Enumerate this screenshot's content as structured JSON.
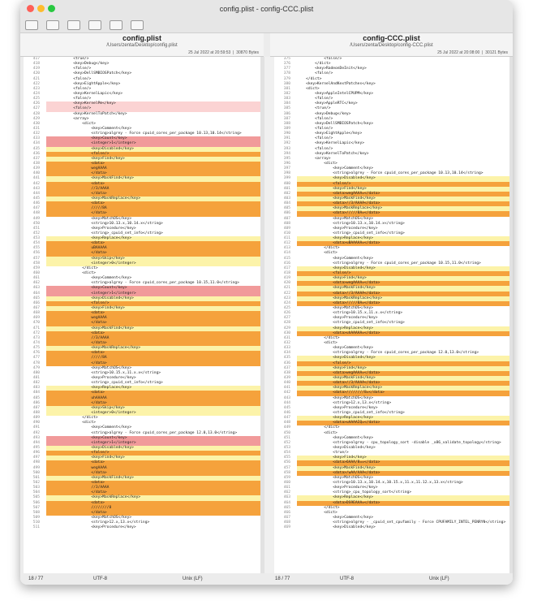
{
  "window": {
    "title": "config.plist - config-CCC.plist"
  },
  "left": {
    "file": "config.plist",
    "path": "/Users/zenta/Desktop/config.plist",
    "date": "25 Jul 2022 at 20:59:53",
    "size": "30870 Bytes",
    "lines": [
      [
        417,
        "            <true/>"
      ],
      [
        418,
        "            <key>Debug</key>"
      ],
      [
        419,
        "            <false/>"
      ],
      [
        420,
        "            <key>DellSMBIOSPatch</key>"
      ],
      [
        421,
        "            <false/>"
      ],
      [
        422,
        "            <key>EightApple</key>"
      ],
      [
        423,
        "            <false/>"
      ],
      [
        424,
        "            <key>KernelLapic</key>"
      ],
      [
        425,
        "            <false/>"
      ],
      [
        426,
        "            <key>KernelPm</key>",
        "pink"
      ],
      [
        427,
        "            <false/>",
        "pink"
      ],
      [
        428,
        "            <key>KernelToPatch</key>"
      ],
      [
        429,
        "            <array>"
      ],
      [
        430,
        "                <dict>"
      ],
      [
        431,
        "                    <key>Comment</key>"
      ],
      [
        432,
        "                    <string>algrey - Force cpuid_cores_per_package 10.13,10.14</string>"
      ],
      [
        433,
        "                    <key>Count</key>",
        "red"
      ],
      [
        434,
        "                    <integer>1</integer>",
        "red"
      ],
      [
        435,
        "                    <key>Disabled</key>",
        "yellow"
      ],
      [
        436,
        "                    <false/>",
        "orange"
      ],
      [
        437,
        "                    <key>Find</key>",
        "yellow"
      ],
      [
        438,
        "                    <data>",
        "orange"
      ],
      [
        439,
        "                    wegAAAA",
        "orange"
      ],
      [
        440,
        "                    </data>",
        "orange"
      ],
      [
        441,
        "                    <key>MaskFind</key>",
        "yellow"
      ],
      [
        442,
        "                    <data>",
        "orange"
      ],
      [
        443,
        "                    //3/AAAA",
        "orange"
      ],
      [
        444,
        "                    </data>",
        "orange"
      ],
      [
        445,
        "                    <key>MaskReplace</key>",
        "yellow"
      ],
      [
        446,
        "                    <data>",
        "orange"
      ],
      [
        447,
        "                    /////8A",
        "orange"
      ],
      [
        448,
        "                    </data>",
        "orange"
      ],
      [
        449,
        "                    <key>MatchOS</key>"
      ],
      [
        450,
        "                    <string>10.13.x,10.14.x</string>"
      ],
      [
        451,
        "                    <key>Procedure</key>"
      ],
      [
        452,
        "                    <string>_cpuid_set_info</string>"
      ],
      [
        453,
        "                    <key>Replace</key>",
        "yellow"
      ],
      [
        454,
        "                    <data>",
        "orange"
      ],
      [
        455,
        "                    uBAAAAA",
        "orange"
      ],
      [
        456,
        "                    </data>",
        "orange"
      ],
      [
        457,
        "                    <key>Skip</key>",
        "yellow"
      ],
      [
        458,
        "                    <integer>0</integer>",
        "yellow"
      ],
      [
        459,
        "                </dict>"
      ],
      [
        460,
        "                <dict>"
      ],
      [
        461,
        "                    <key>Comment</key>"
      ],
      [
        462,
        "                    <string>algrey - Force cpuid_cores_per_package 10.15,11.0</string>"
      ],
      [
        463,
        "                    <key>Count</key>",
        "red"
      ],
      [
        464,
        "                    <integer>1</integer>",
        "red"
      ],
      [
        465,
        "                    <key>Disabled</key>",
        "yellow"
      ],
      [
        466,
        "                    <false/>",
        "orange"
      ],
      [
        467,
        "                    <key>Find</key>",
        "yellow"
      ],
      [
        468,
        "                    <data>",
        "orange"
      ],
      [
        469,
        "                    wegAAAA",
        "orange"
      ],
      [
        470,
        "                    </data>",
        "orange"
      ],
      [
        471,
        "                    <key>MaskFind</key>",
        "yellow"
      ],
      [
        472,
        "                    <data>",
        "orange"
      ],
      [
        473,
        "                    //3/AAAA",
        "orange"
      ],
      [
        474,
        "                    </data>",
        "orange"
      ],
      [
        475,
        "                    <key>MaskReplace</key>",
        "yellow"
      ],
      [
        476,
        "                    <data>",
        "orange"
      ],
      [
        477,
        "                    /////8A",
        "orange"
      ],
      [
        478,
        "                    </data>",
        "orange"
      ],
      [
        479,
        "                    <key>MatchOS</key>"
      ],
      [
        480,
        "                    <string>10.15.x,11.x.x</string>"
      ],
      [
        481,
        "                    <key>Procedure</key>"
      ],
      [
        482,
        "                    <string>_cpuid_set_info</string>"
      ],
      [
        483,
        "                    <key>Replace</key>",
        "yellow"
      ],
      [
        484,
        "                    <data>",
        "orange"
      ],
      [
        485,
        "                    uhAAAAA",
        "orange"
      ],
      [
        486,
        "                    </data>",
        "orange"
      ],
      [
        487,
        "                    <key>Skip</key>",
        "yellow"
      ],
      [
        488,
        "                    <integer>0</integer>",
        "yellow"
      ],
      [
        489,
        "                </dict>"
      ],
      [
        490,
        "                <dict>"
      ],
      [
        491,
        "                    <key>Comment</key>"
      ],
      [
        492,
        "                    <string>algrey - Force cpuid_cores_per_package 12.0,13.0</string>"
      ],
      [
        493,
        "                    <key>Count</key>",
        "red"
      ],
      [
        494,
        "                    <integer>1</integer>",
        "red"
      ],
      [
        495,
        "                    <key>Disabled</key>",
        "yellow"
      ],
      [
        496,
        "                    <false/>",
        "orange"
      ],
      [
        497,
        "                    <key>Find</key>",
        "yellow"
      ],
      [
        498,
        "                    <data>",
        "orange"
      ],
      [
        499,
        "                    wegAAAA",
        "orange"
      ],
      [
        500,
        "                    </data>",
        "orange"
      ],
      [
        501,
        "                    <key>MaskFind</key>",
        "yellow"
      ],
      [
        502,
        "                    <data>",
        "orange"
      ],
      [
        503,
        "                    //3/AAAA",
        "orange"
      ],
      [
        504,
        "                    </data>",
        "orange"
      ],
      [
        505,
        "                    <key>MaskReplace</key>",
        "yellow"
      ],
      [
        506,
        "                    <data>",
        "orange"
      ],
      [
        507,
        "                    ////////8",
        "orange"
      ],
      [
        508,
        "                    </data>",
        "orange"
      ],
      [
        509,
        "                    <key>MatchOS</key>"
      ],
      [
        510,
        "                    <string>12.x,13.x</string>"
      ],
      [
        511,
        "                    <key>Procedure</key>"
      ]
    ],
    "status": {
      "position": "18 / 77",
      "encoding": "UTF-8",
      "line_endings": "Unix (LF)"
    }
  },
  "right": {
    "file": "config-CCC.plist",
    "path": "/Users/zenta/Desktop/config-CCC.plist",
    "date": "25 Jul 2022 at 20:08:00",
    "size": "30121 Bytes",
    "lines": [
      [
        375,
        "            <false/>"
      ],
      [
        376,
        "        </dict>"
      ],
      [
        377,
        "        <key>RadeonDeInit</key>"
      ],
      [
        378,
        "        <false/>"
      ],
      [
        379,
        "    </dict>"
      ],
      [
        380,
        "    <key>KernelAndKextPatches</key>"
      ],
      [
        381,
        "    <dict>"
      ],
      [
        382,
        "        <key>AppleIntelCPUPM</key>"
      ],
      [
        383,
        "        <false/>"
      ],
      [
        384,
        "        <key>AppleRTC</key>"
      ],
      [
        385,
        "        <true/>"
      ],
      [
        386,
        "        <key>Debug</key>"
      ],
      [
        387,
        "        <false/>"
      ],
      [
        388,
        "        <key>DellSMBIOSPatch</key>"
      ],
      [
        389,
        "        <false/>"
      ],
      [
        390,
        "        <key>EightApple</key>"
      ],
      [
        391,
        "        <false/>"
      ],
      [
        392,
        "        <key>KernelLapic</key>"
      ],
      [
        393,
        "        <false/>"
      ],
      [
        394,
        "        <key>KernelToPatch</key>"
      ],
      [
        395,
        "        <array>"
      ],
      [
        396,
        "            <dict>"
      ],
      [
        397,
        "                <key>Comment</key>"
      ],
      [
        398,
        "                <string>algrey - Force cpuid_cores_per_package 10.13,10.14</string>"
      ],
      [
        399,
        "                <key>Disabled</key>",
        "yellow"
      ],
      [
        400,
        "                <false/>",
        "orange"
      ],
      [
        401,
        "                <key>Find</key>",
        "yellow"
      ],
      [
        402,
        "                <data>wegAAAA=</data>",
        "orange"
      ],
      [
        403,
        "                <key>MaskFind</key>",
        "yellow"
      ],
      [
        404,
        "                <data>//3/AAAA</data>",
        "orange"
      ],
      [
        405,
        "                <key>MaskReplace</key>",
        "yellow"
      ],
      [
        406,
        "                <data>/////8A=</data>",
        "orange"
      ],
      [
        407,
        "                <key>MatchOS</key>"
      ],
      [
        408,
        "                <string>10.13.x,10.14.x</string>"
      ],
      [
        409,
        "                <key>Procedure</key>"
      ],
      [
        410,
        "                <string>_cpuid_set_info</string>"
      ],
      [
        411,
        "                <key>Replace</key>",
        "yellow"
      ],
      [
        412,
        "                <data>uBAAAAA=</data>",
        "orange"
      ],
      [
        413,
        "            </dict>"
      ],
      [
        414,
        "            <dict>"
      ],
      [
        415,
        "                <key>Comment</key>"
      ],
      [
        416,
        "                <string>algrey - Force cpuid_cores_per_package 10.15,11.0</string>"
      ],
      [
        417,
        "                <key>Disabled</key>",
        "yellow"
      ],
      [
        418,
        "                <false/>",
        "orange"
      ],
      [
        419,
        "                <key>Find</key>",
        "yellow"
      ],
      [
        420,
        "                <data>wegAAAA=</data>",
        "orange"
      ],
      [
        421,
        "                <key>MaskFind</key>",
        "yellow"
      ],
      [
        422,
        "                <data>//3/AAAA</data>",
        "orange"
      ],
      [
        423,
        "                <key>MaskReplace</key>",
        "yellow"
      ],
      [
        424,
        "                <data>/////8A=</data>",
        "orange"
      ],
      [
        425,
        "                <key>MatchOS</key>"
      ],
      [
        426,
        "                <string>10.15.x,11.x.x</string>"
      ],
      [
        427,
        "                <key>Procedure</key>"
      ],
      [
        428,
        "                <string>_cpuid_set_info</string>"
      ],
      [
        429,
        "                <key>Replace</key>",
        "yellow"
      ],
      [
        430,
        "                <data>uhAAAAA=</data>",
        "orange"
      ],
      [
        431,
        "            </dict>"
      ],
      [
        432,
        "            <dict>"
      ],
      [
        433,
        "                <key>Comment</key>"
      ],
      [
        434,
        "                <string>algrey - Force cpuid_cores_per_package 12.0,13.0</string>"
      ],
      [
        435,
        "                <key>Disabled</key>",
        "yellow"
      ],
      [
        436,
        "                <false/>",
        "orange"
      ],
      [
        437,
        "                <key>Find</key>",
        "yellow"
      ],
      [
        438,
        "                <data>wegAAAA=</data>",
        "orange"
      ],
      [
        439,
        "                <key>MaskFind</key>",
        "yellow"
      ],
      [
        440,
        "                <data>//3/AAAA</data>",
        "orange"
      ],
      [
        441,
        "                <key>MaskReplace</key>",
        "yellow"
      ],
      [
        442,
        "                <data>////////8=</data>",
        "orange"
      ],
      [
        443,
        "                <key>MatchOS</key>"
      ],
      [
        444,
        "                <string>12.x,13.x</string>"
      ],
      [
        445,
        "                <key>Procedure</key>"
      ],
      [
        446,
        "                <string>_cpuid_set_info</string>"
      ],
      [
        447,
        "                <key>Replace</key>",
        "yellow"
      ],
      [
        448,
        "                <data>uAAAAIQ=</data>",
        "orange"
      ],
      [
        449,
        "            </dict>"
      ],
      [
        450,
        "            <dict>"
      ],
      [
        451,
        "                <key>Comment</key>"
      ],
      [
        452,
        "                <string>algrey - cpu_topology_sort -disable _x86_validate_topology</string>"
      ],
      [
        453,
        "                <key>Disabled</key>"
      ],
      [
        454,
        "                <true/>"
      ],
      [
        455,
        "                <key>Find</key>",
        "yellow"
      ],
      [
        456,
        "                <data>6AAA/8==</data>",
        "orange"
      ],
      [
        457,
        "                <key>MaskFind</key>",
        "yellow"
      ],
      [
        458,
        "                <data>/wAA/AAA</data>",
        "orange"
      ],
      [
        459,
        "                <key>MatchOS</key>"
      ],
      [
        460,
        "                <string>10.13.x,10.14.x,10.15.x,11.x,11.12.x,13.x</string>"
      ],
      [
        461,
        "                <key>Procedure</key>"
      ],
      [
        462,
        "                <string>_cpu_topology_sort</string>"
      ],
      [
        463,
        "                <key>Replace</key>",
        "yellow"
      ],
      [
        464,
        "                <data>DS9EAAA=</data>",
        "orange"
      ],
      [
        465,
        "            </dict>"
      ],
      [
        466,
        "            <dict>"
      ],
      [
        467,
        "                <key>Comment</key>"
      ],
      [
        468,
        "                <string>algrey - _cpuid_set_cpufamily - Force CPUFAMILY_INTEL_PENRYN</string>"
      ],
      [
        469,
        "                <key>Disabled</key>"
      ]
    ],
    "status": {
      "position": "18 / 77",
      "encoding": "UTF-8",
      "line_endings": "Unix (LF)"
    }
  }
}
